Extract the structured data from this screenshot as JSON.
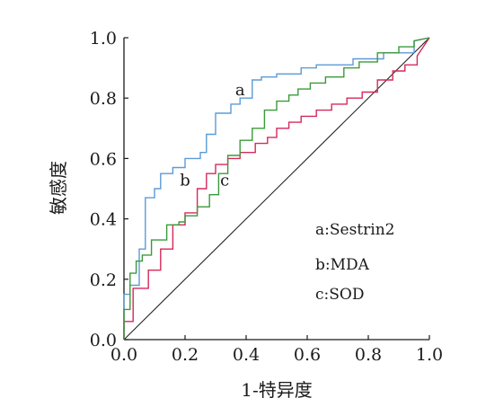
{
  "chart_data": {
    "type": "line",
    "title": "",
    "xlabel": "1-特异度",
    "ylabel": "敏感度",
    "xlim": [
      0,
      1
    ],
    "ylim": [
      0,
      1
    ],
    "x_ticks": [
      "0.0",
      "0.2",
      "0.4",
      "0.6",
      "0.8",
      "1.0"
    ],
    "y_ticks": [
      "0.0",
      "0.2",
      "0.4",
      "0.6",
      "0.8",
      "1.0"
    ],
    "grid": false,
    "legend_position": "right-middle",
    "legend": [
      "a:Sestrin2",
      "b:MDA",
      "c:SOD"
    ],
    "reference_line": {
      "x": [
        0,
        1
      ],
      "y": [
        0,
        1
      ],
      "color": "#1a1a1a"
    },
    "series": [
      {
        "label": "a",
        "color": "#5b9bd5",
        "x": [
          0,
          0,
          0.02,
          0.02,
          0.05,
          0.05,
          0.07,
          0.07,
          0.1,
          0.1,
          0.12,
          0.12,
          0.16,
          0.16,
          0.2,
          0.2,
          0.25,
          0.25,
          0.27,
          0.27,
          0.3,
          0.3,
          0.35,
          0.35,
          0.38,
          0.38,
          0.42,
          0.42,
          0.45,
          0.45,
          0.5,
          0.5,
          0.58,
          0.58,
          0.63,
          0.63,
          0.75,
          0.75,
          0.85,
          0.85,
          0.95,
          0.95,
          1
        ],
        "y": [
          0,
          0.15,
          0.15,
          0.18,
          0.18,
          0.3,
          0.3,
          0.47,
          0.47,
          0.5,
          0.5,
          0.55,
          0.55,
          0.57,
          0.57,
          0.6,
          0.6,
          0.62,
          0.62,
          0.68,
          0.68,
          0.75,
          0.75,
          0.78,
          0.78,
          0.8,
          0.8,
          0.86,
          0.86,
          0.87,
          0.87,
          0.88,
          0.88,
          0.9,
          0.9,
          0.91,
          0.91,
          0.93,
          0.93,
          0.95,
          0.95,
          0.99,
          1
        ]
      },
      {
        "label": "b",
        "color": "#d6285a",
        "x": [
          0,
          0,
          0.03,
          0.03,
          0.08,
          0.08,
          0.12,
          0.12,
          0.16,
          0.16,
          0.2,
          0.2,
          0.24,
          0.24,
          0.27,
          0.27,
          0.3,
          0.3,
          0.34,
          0.34,
          0.38,
          0.38,
          0.43,
          0.43,
          0.47,
          0.47,
          0.5,
          0.5,
          0.54,
          0.54,
          0.58,
          0.58,
          0.63,
          0.63,
          0.68,
          0.68,
          0.73,
          0.73,
          0.78,
          0.78,
          0.83,
          0.83,
          0.88,
          0.88,
          0.92,
          0.92,
          0.96,
          0.96,
          1
        ],
        "y": [
          0,
          0.06,
          0.06,
          0.17,
          0.17,
          0.23,
          0.23,
          0.3,
          0.3,
          0.38,
          0.38,
          0.42,
          0.42,
          0.5,
          0.5,
          0.55,
          0.55,
          0.58,
          0.58,
          0.6,
          0.6,
          0.62,
          0.62,
          0.65,
          0.65,
          0.67,
          0.67,
          0.7,
          0.7,
          0.72,
          0.72,
          0.74,
          0.74,
          0.76,
          0.76,
          0.78,
          0.78,
          0.8,
          0.8,
          0.82,
          0.82,
          0.86,
          0.86,
          0.89,
          0.89,
          0.91,
          0.91,
          0.94,
          1
        ]
      },
      {
        "label": "c",
        "color": "#3a9a3a",
        "x": [
          0,
          0,
          0.02,
          0.02,
          0.04,
          0.04,
          0.06,
          0.06,
          0.09,
          0.09,
          0.14,
          0.14,
          0.18,
          0.18,
          0.2,
          0.2,
          0.24,
          0.24,
          0.28,
          0.28,
          0.31,
          0.31,
          0.34,
          0.34,
          0.38,
          0.38,
          0.42,
          0.42,
          0.46,
          0.46,
          0.5,
          0.5,
          0.54,
          0.54,
          0.57,
          0.57,
          0.61,
          0.61,
          0.66,
          0.66,
          0.72,
          0.72,
          0.77,
          0.77,
          0.83,
          0.83,
          0.9,
          0.9,
          0.95,
          0.95,
          1
        ],
        "y": [
          0,
          0.1,
          0.1,
          0.22,
          0.22,
          0.26,
          0.26,
          0.28,
          0.28,
          0.33,
          0.33,
          0.38,
          0.38,
          0.39,
          0.39,
          0.41,
          0.41,
          0.44,
          0.44,
          0.48,
          0.48,
          0.55,
          0.55,
          0.61,
          0.61,
          0.66,
          0.66,
          0.7,
          0.7,
          0.76,
          0.76,
          0.79,
          0.79,
          0.81,
          0.81,
          0.83,
          0.83,
          0.85,
          0.85,
          0.87,
          0.87,
          0.9,
          0.9,
          0.92,
          0.92,
          0.95,
          0.95,
          0.97,
          0.97,
          0.99,
          1
        ]
      }
    ],
    "curve_labels": [
      {
        "text": "a",
        "x": 0.38,
        "y": 0.81
      },
      {
        "text": "b",
        "x": 0.2,
        "y": 0.51
      },
      {
        "text": "c",
        "x": 0.33,
        "y": 0.51
      }
    ]
  }
}
